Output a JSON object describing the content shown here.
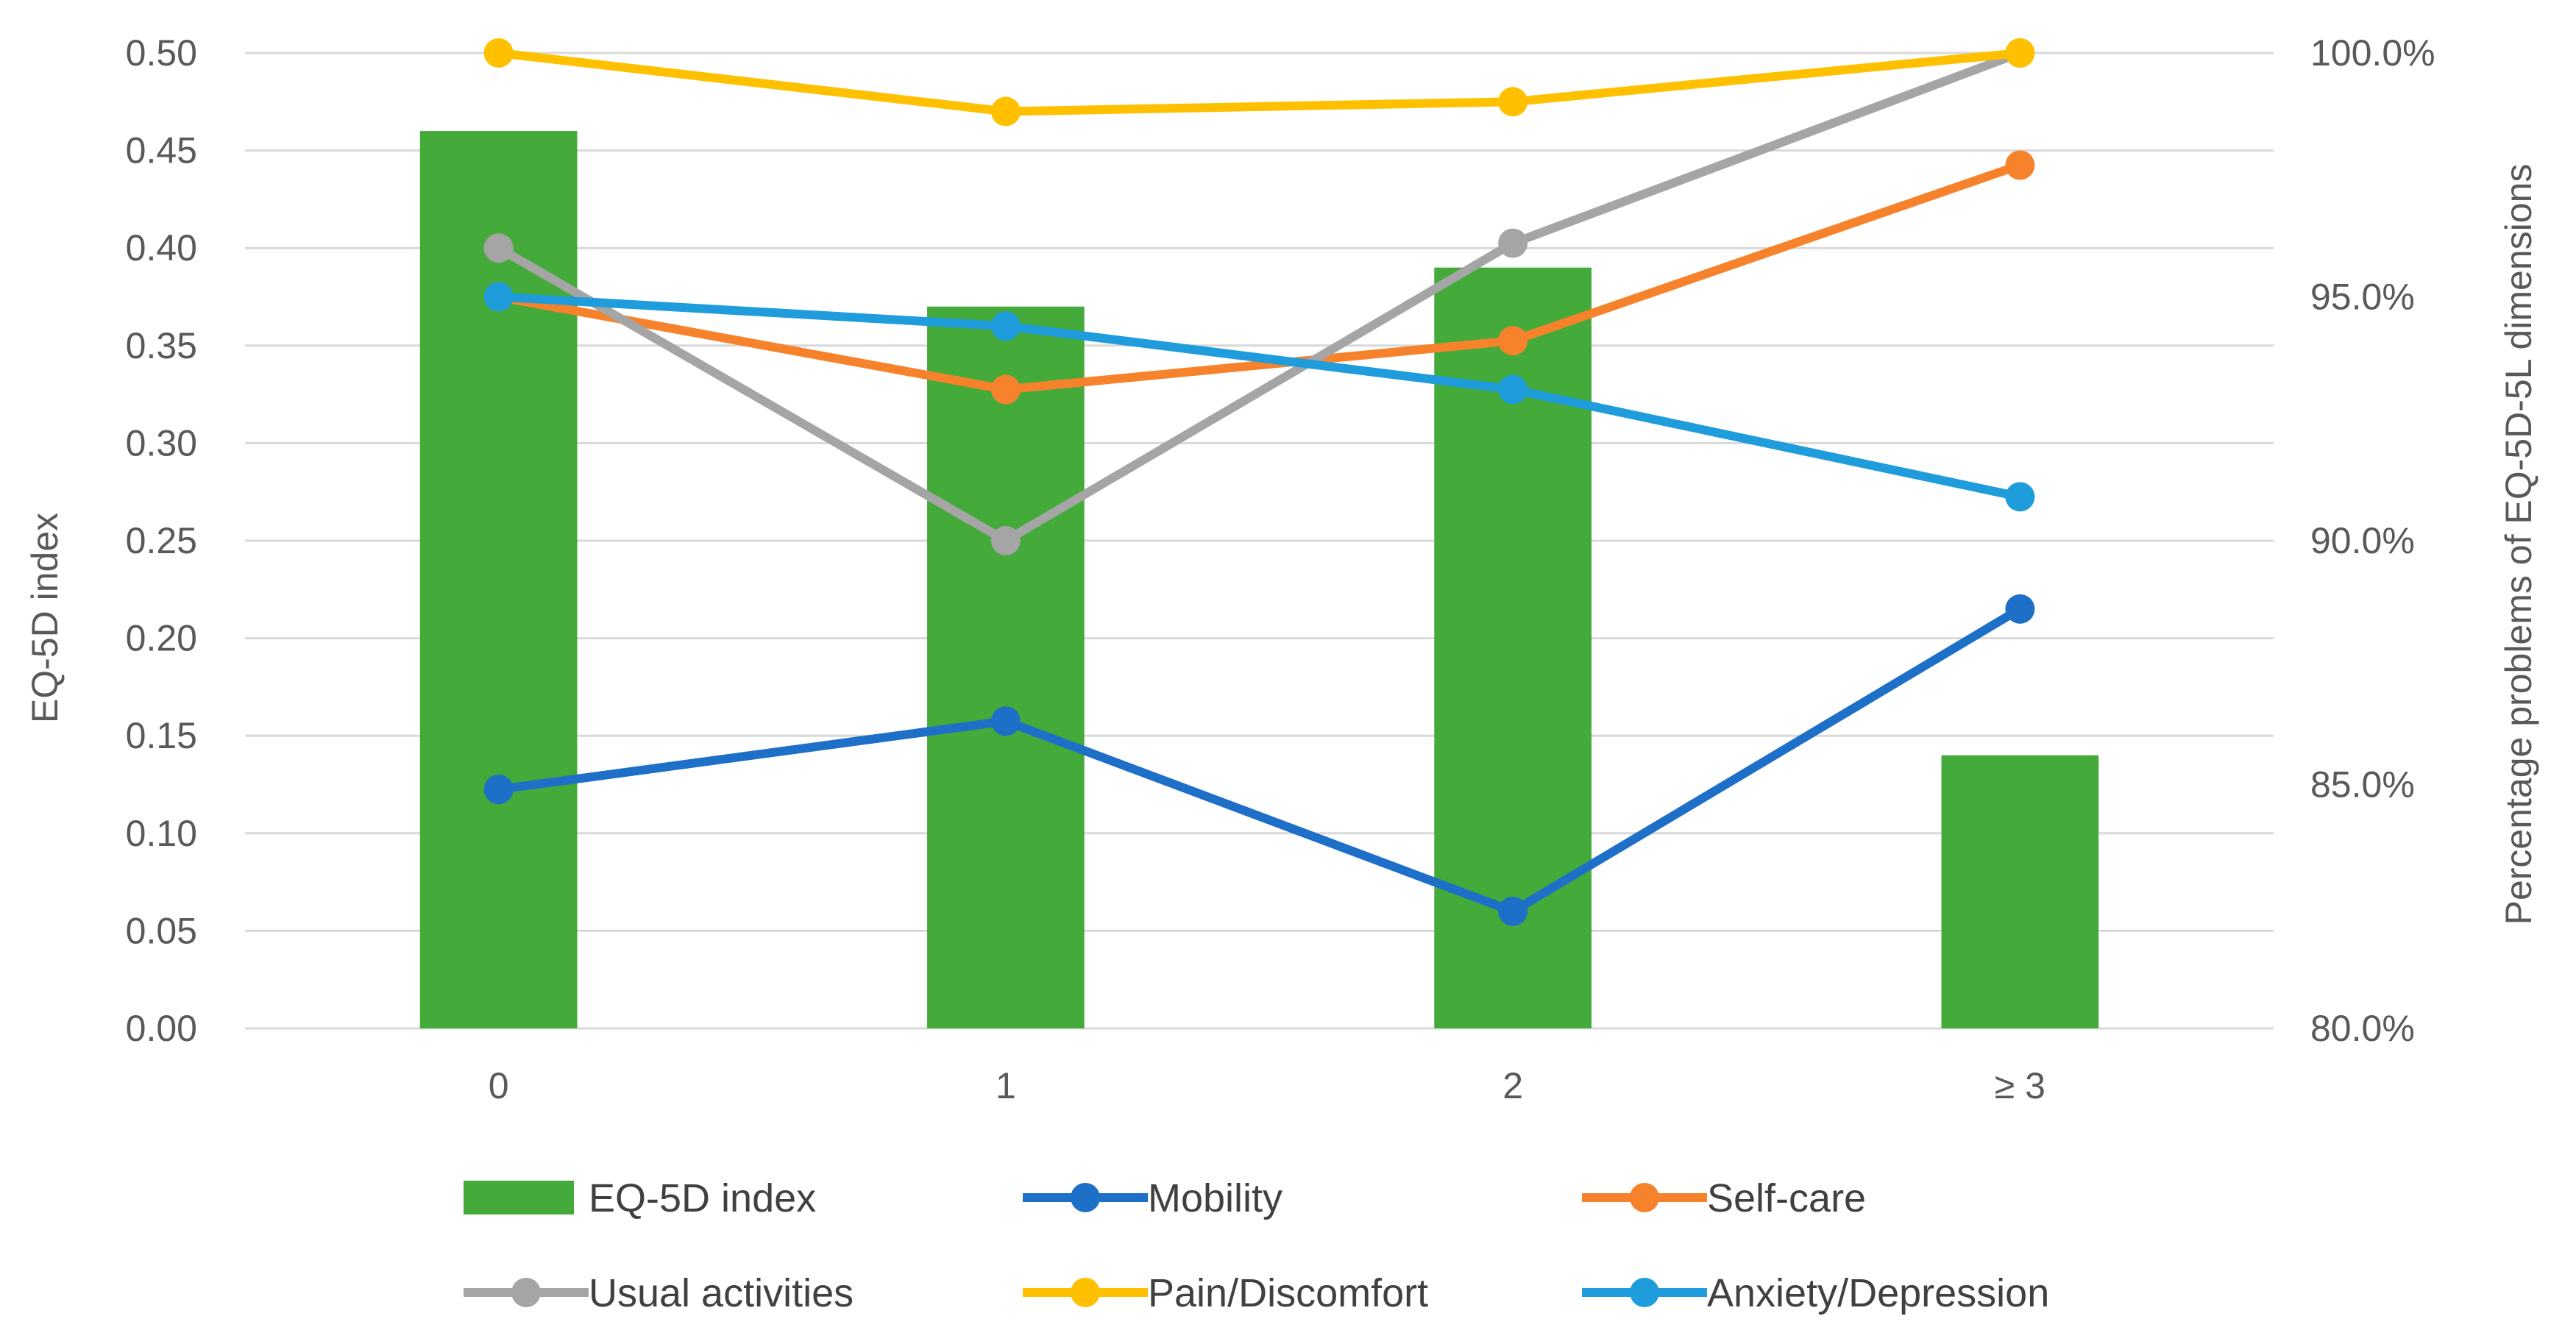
{
  "chart_data": {
    "type": "bar",
    "categories": [
      "0",
      "1",
      "2",
      "≥ 3"
    ],
    "y_left": {
      "title": "EQ-5D index",
      "range": [
        0,
        0.5
      ],
      "ticks": [
        "0.00",
        "0.05",
        "0.10",
        "0.15",
        "0.20",
        "0.25",
        "0.30",
        "0.35",
        "0.40",
        "0.45",
        "0.50"
      ]
    },
    "y_right": {
      "title": "Percentage problems of EQ-5D-5L dimensions",
      "range": [
        80,
        100
      ],
      "ticks": [
        "80.0%",
        "85.0%",
        "90.0%",
        "95.0%",
        "100.0%"
      ]
    },
    "gridlines": true,
    "legend_position": "bottom",
    "series": [
      {
        "name": "EQ-5D index",
        "kind": "bar",
        "axis": "left",
        "color": "#44AA3A",
        "values": [
          0.46,
          0.37,
          0.39,
          0.14
        ]
      },
      {
        "name": "Mobility",
        "kind": "line",
        "axis": "right",
        "color": "#1E6FC8",
        "values": [
          84.9,
          86.3,
          82.4,
          88.6
        ]
      },
      {
        "name": "Self-care",
        "kind": "line",
        "axis": "right",
        "color": "#F7822C",
        "values": [
          95.0,
          93.1,
          94.1,
          97.7
        ]
      },
      {
        "name": "Usual activities",
        "kind": "line",
        "axis": "right",
        "color": "#A5A5A5",
        "values": [
          96.0,
          90.0,
          96.1,
          100.0
        ]
      },
      {
        "name": "Pain/Discomfort",
        "kind": "line",
        "axis": "right",
        "color": "#FFC000",
        "values": [
          100.0,
          98.8,
          99.0,
          100.0
        ]
      },
      {
        "name": "Anxiety/Depression",
        "kind": "line",
        "axis": "right",
        "color": "#1F9CDB",
        "values": [
          95.0,
          94.4,
          93.1,
          90.9
        ]
      }
    ]
  }
}
